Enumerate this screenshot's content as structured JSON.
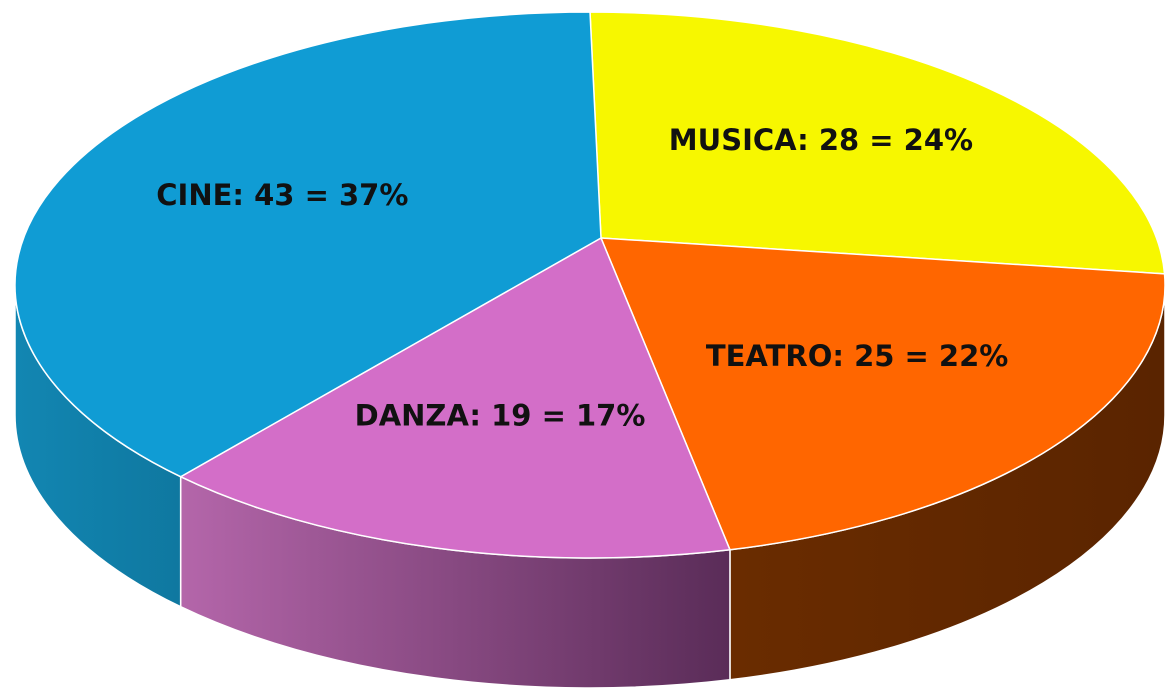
{
  "chart_data": {
    "type": "pie",
    "values": [
      28,
      25,
      19,
      43
    ],
    "value_labels": [
      "MUSICA: 28 = 24%",
      "TEATRO: 25 = 22%",
      "DANZA: 19 = 17%",
      "CINE: 43 = 37%"
    ],
    "colors": [
      "#f7f700",
      "#ff6600",
      "#d36ec8",
      "#109cd4"
    ],
    "side_colors": [
      [
        "#8a8a00",
        "#8a8a00"
      ],
      [
        "#6a2c00",
        "#5a2400"
      ],
      [
        "#b466aa",
        "#5a2c58"
      ],
      [
        "#1286b2",
        "#0f78a0"
      ]
    ]
  }
}
